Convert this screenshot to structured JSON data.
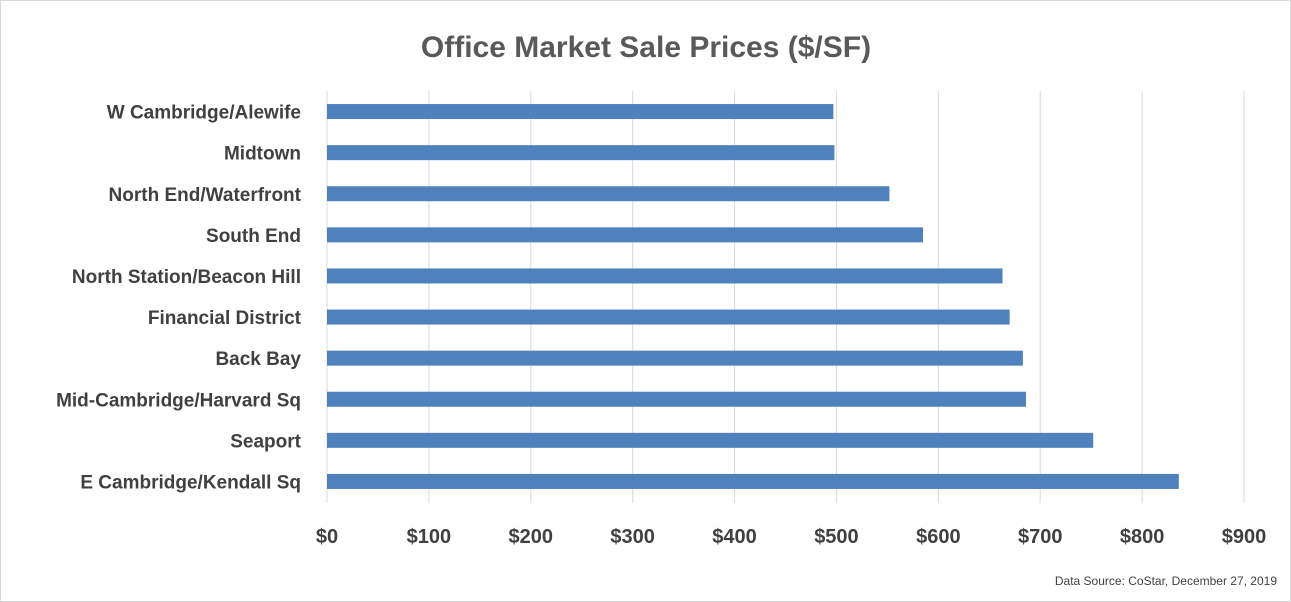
{
  "chart_data": {
    "type": "bar",
    "orientation": "horizontal",
    "title": "Office Market Sale Prices ($/SF)",
    "categories": [
      "W Cambridge/Alewife",
      "Midtown",
      "North End/Waterfront",
      "South End",
      "North Station/Beacon Hill",
      "Financial District",
      "Back Bay",
      "Mid-Cambridge/Harvard Sq",
      "Seaport",
      "E Cambridge/Kendall Sq"
    ],
    "values": [
      497,
      498,
      552,
      585,
      663,
      670,
      683,
      686,
      752,
      836
    ],
    "xlim": [
      0,
      900
    ],
    "xticks": [
      0,
      100,
      200,
      300,
      400,
      500,
      600,
      700,
      800,
      900
    ],
    "xtick_labels": [
      "$0",
      "$100",
      "$200",
      "$300",
      "$400",
      "$500",
      "$600",
      "$700",
      "$800",
      "$900"
    ],
    "bar_color": "#4f81bd",
    "grid": "vertical",
    "source": "Data Source: CoStar, December 27, 2019"
  }
}
